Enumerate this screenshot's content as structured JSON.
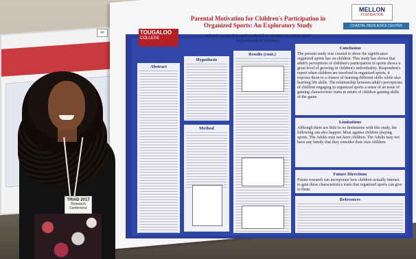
{
  "scene": {
    "description_tags": [
      "photo",
      "poster-session"
    ]
  },
  "left_poster": {
    "heading": "",
    "tag": "##"
  },
  "main_poster": {
    "logo_left": {
      "line1": "TOUGALOO",
      "line2": "COLLEGE"
    },
    "title": "Parental Motivation for Children's Participation in Organized Sports: An Exploratory Study",
    "authors": "Valencia A. Banks* and Frederick L. Hunter Jr., MSW MA*",
    "department": "Department of Sociology",
    "sponsor": {
      "line1": "MELLON",
      "line2": "FOUNDATION"
    },
    "sponsor2": "COASTAL RESILIENCE CENTER",
    "sections": {
      "abstract": "Abstract",
      "hypotheses": "Hypothesis",
      "results": "Results (cont.)",
      "conclusion": "Conclusion",
      "method": "Method",
      "limitations": "Limitations",
      "future": "Future Directions",
      "references": "References"
    },
    "conclusion_text": "The present study was created to show the significance organized sports has on children. This study has shown that adult's perceptions of children's participation in sports shows a great level of growing in children's individuality. Respondent's report when children are involved in organized sports, it exposes them to a chance of learning different skills while also learning life skills. The relationship between adult's perceptions of children engaging in organized sports a sense of an issue of gaining characteristic traits in return of children gaining skills of the game.",
    "limitations_text": "Although there are little to no limitations with this study, the following can also happen: Most against children playing sports. The Adults may not have children. The Adults may not have any family that they consider their own children.",
    "future_text": "Future research can incorporate how children actually interact to gain these characteristics traits that organized sports can give to them."
  },
  "badge": {
    "line1": "TRIAD 2017",
    "line2": "Research Conference"
  }
}
